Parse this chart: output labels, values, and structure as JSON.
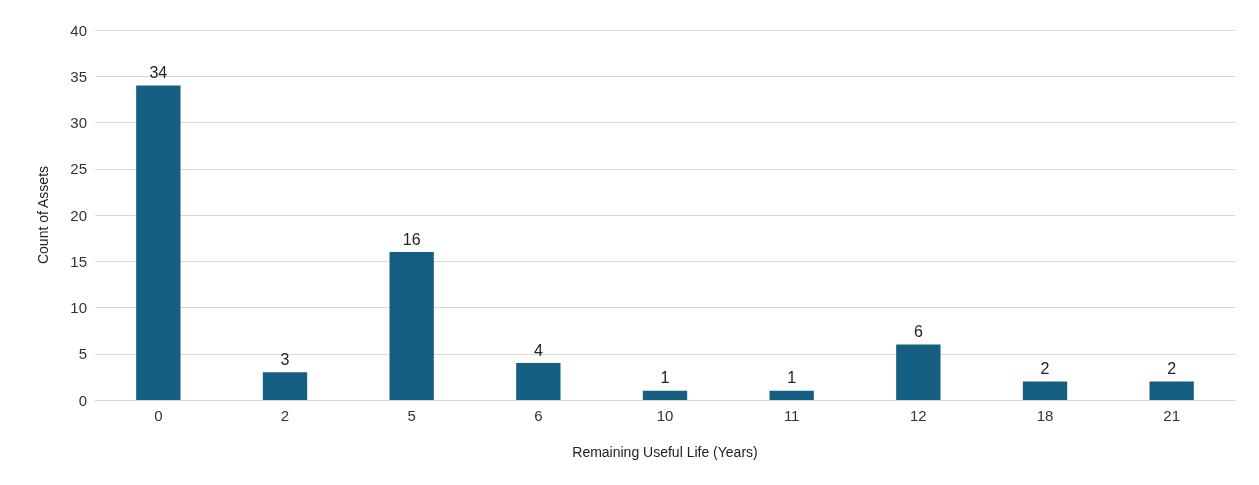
{
  "chart_data": {
    "type": "bar",
    "xlabel": "Remaining Useful Life (Years)",
    "ylabel": "Count of Assets",
    "categories": [
      "0",
      "2",
      "5",
      "6",
      "10",
      "11",
      "12",
      "18",
      "21"
    ],
    "values": [
      34,
      3,
      16,
      4,
      1,
      1,
      6,
      2,
      2
    ],
    "color": "#155f82",
    "ylim": [
      0,
      40
    ],
    "yticks": [
      0,
      5,
      10,
      15,
      20,
      25,
      30,
      35,
      40
    ],
    "grid": "y",
    "data_labels": true
  }
}
